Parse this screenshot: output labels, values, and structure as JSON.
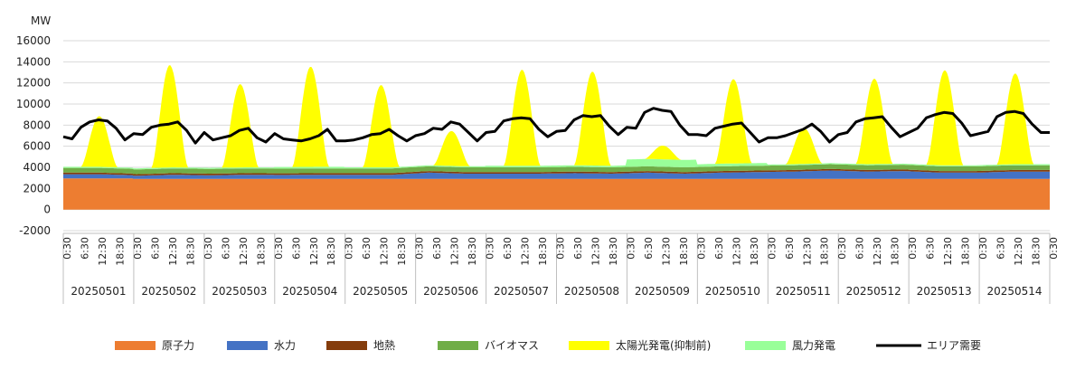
{
  "chart_data": {
    "type": "area",
    "title": "",
    "y_unit_label": "MW",
    "ylim": [
      -2000,
      16000
    ],
    "y_ticks": [
      -2000,
      0,
      2000,
      4000,
      6000,
      8000,
      10000,
      12000,
      14000,
      16000
    ],
    "grid": true,
    "legend_position": "bottom",
    "dates": [
      "20250501",
      "20250502",
      "20250503",
      "20250504",
      "20250505",
      "20250506",
      "20250507",
      "20250508",
      "20250509",
      "20250510",
      "20250511",
      "20250512",
      "20250513",
      "20250514"
    ],
    "time_tick_labels": [
      "0:30",
      "6:30",
      "12:30",
      "18:30"
    ],
    "final_tick_label": "0:30",
    "stacked_series": [
      {
        "name": "原子力",
        "color": "#ED7D31",
        "values": [
          2950,
          2900,
          2900,
          2900,
          2900,
          2900,
          2900,
          2900,
          2900,
          2900,
          2900,
          2900,
          2900,
          2900
        ]
      },
      {
        "name": "水力",
        "color": "#4472C4",
        "values": [
          400,
          400,
          300,
          400,
          350,
          400,
          380,
          400,
          400,
          400,
          600,
          500,
          500,
          500,
          550,
          500,
          600,
          500,
          600,
          650,
          700,
          800,
          700,
          750,
          600,
          600,
          700,
          700
        ],
        "values_note_unused": ""
      },
      {
        "name": "地熱",
        "color": "#843C0C",
        "values": [
          150,
          150,
          150,
          150,
          150,
          150,
          150,
          150,
          150,
          150,
          150,
          150,
          150,
          150
        ]
      },
      {
        "name": "バイオマス",
        "color": "#70AD47",
        "values": [
          450,
          450,
          450,
          450,
          450,
          450,
          450,
          450,
          450,
          450,
          450,
          450,
          450,
          450
        ]
      },
      {
        "name": "太陽光発電(抑制前)",
        "color": "#FFFF00",
        "daily_peaks": [
          8800,
          13700,
          11900,
          13500,
          11800,
          7300,
          13100,
          12900,
          5300,
          12000,
          7400,
          12100,
          13000,
          12600
        ]
      },
      {
        "name": "風力発電",
        "color": "#99FF99",
        "values": [
          100,
          100,
          100,
          150,
          100,
          100,
          150,
          150,
          700,
          250,
          100,
          100,
          100,
          100
        ]
      }
    ],
    "line_series": [
      {
        "name": "エリア需要",
        "color": "#000000",
        "daily_points": [
          [
            6900,
            6700,
            7800,
            8300,
            8500,
            8400,
            7700,
            6600
          ],
          [
            7200,
            7100,
            7800,
            8000,
            8100,
            8300,
            7500,
            6300
          ],
          [
            7300,
            6600,
            6800,
            7000,
            7500,
            7700,
            6800,
            6400
          ],
          [
            7200,
            6700,
            6600,
            6500,
            6700,
            7000,
            7600,
            6500
          ],
          [
            6500,
            6600,
            6800,
            7100,
            7200,
            7600,
            7000,
            6500
          ],
          [
            7000,
            7200,
            7700,
            7600,
            8300,
            8100,
            7300,
            6500
          ],
          [
            7300,
            7400,
            8400,
            8600,
            8700,
            8600,
            7600,
            6900
          ],
          [
            7400,
            7500,
            8500,
            8900,
            8800,
            8900,
            7900,
            7100
          ],
          [
            7800,
            7700,
            9200,
            9600,
            9400,
            9300,
            8000,
            7100
          ],
          [
            7100,
            7000,
            7700,
            7900,
            8100,
            8200,
            7300,
            6400
          ],
          [
            6800,
            6800,
            7000,
            7300,
            7600,
            8100,
            7400,
            6400
          ],
          [
            7100,
            7300,
            8300,
            8600,
            8700,
            8800,
            7800,
            6900
          ],
          [
            7300,
            7700,
            8700,
            9000,
            9200,
            9100,
            8200,
            7000
          ],
          [
            7200,
            7400,
            8800,
            9200,
            9300,
            9100,
            8100,
            7300
          ]
        ]
      }
    ]
  },
  "legend": [
    {
      "label": "原子力",
      "color": "#ED7D31",
      "kind": "swatch"
    },
    {
      "label": "水力",
      "color": "#4472C4",
      "kind": "swatch"
    },
    {
      "label": "地熱",
      "color": "#843C0C",
      "kind": "swatch"
    },
    {
      "label": "バイオマス",
      "color": "#70AD47",
      "kind": "swatch"
    },
    {
      "label": "太陽光発電(抑制前)",
      "color": "#FFFF00",
      "kind": "swatch"
    },
    {
      "label": "風力発電",
      "color": "#99FF99",
      "kind": "swatch"
    },
    {
      "label": "エリア需要",
      "color": "#000000",
      "kind": "line"
    }
  ]
}
